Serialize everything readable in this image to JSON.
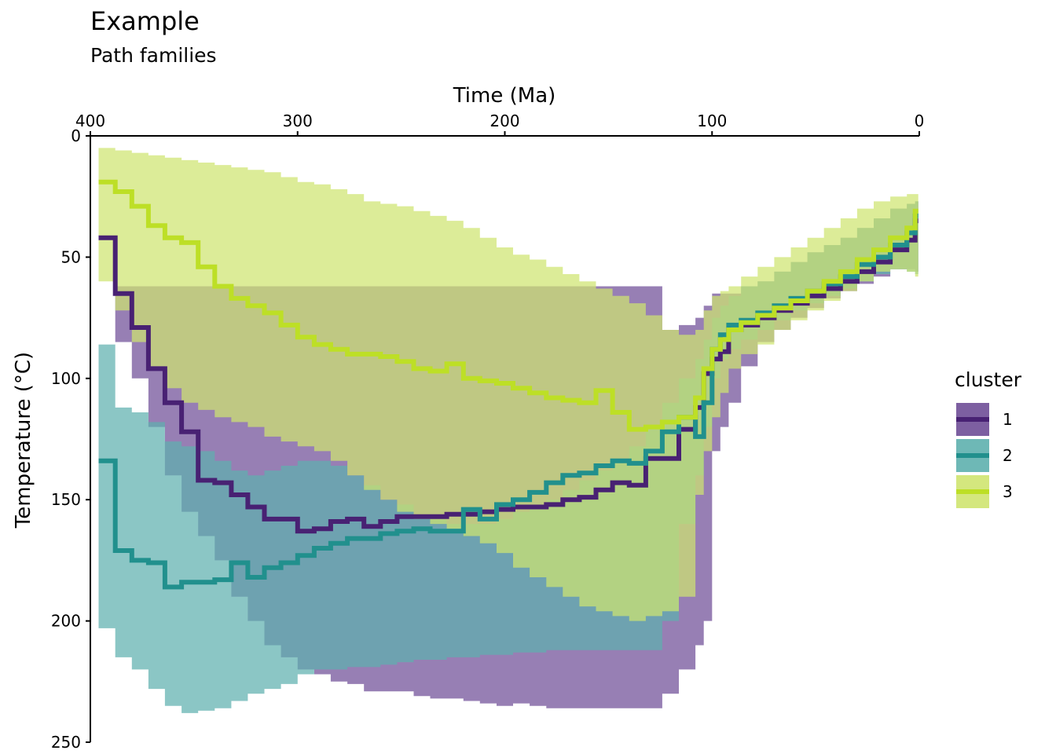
{
  "chart_data": {
    "type": "area",
    "title": "Example",
    "subtitle": "Path families",
    "xlabel": "Time (Ma)",
    "ylabel": "Temperature (°C)",
    "x_axis_position": "top",
    "x_reversed": true,
    "y_reversed": true,
    "xlim": [
      400,
      0
    ],
    "ylim": [
      0,
      250
    ],
    "x_ticks": [
      400,
      300,
      200,
      100,
      0
    ],
    "y_ticks": [
      0,
      50,
      100,
      150,
      200,
      250
    ],
    "grid": false,
    "legend": {
      "title": "cluster",
      "position": "right"
    },
    "series": [
      {
        "name": "1",
        "color": "#482173",
        "band_color": "#6f4e97",
        "time": [
          396,
          388,
          380,
          372,
          364,
          356,
          348,
          340,
          332,
          324,
          316,
          308,
          300,
          292,
          284,
          276,
          268,
          260,
          252,
          244,
          236,
          228,
          220,
          212,
          204,
          196,
          188,
          180,
          172,
          164,
          156,
          148,
          140,
          132,
          124,
          116,
          108,
          104,
          100,
          96,
          92,
          86,
          78,
          70,
          62,
          54,
          46,
          38,
          30,
          22,
          14,
          6,
          2
        ],
        "temperature": [
          42,
          65,
          79,
          96,
          110,
          122,
          142,
          143,
          148,
          153,
          158,
          158,
          163,
          162,
          159,
          158,
          161,
          159,
          157,
          157,
          157,
          156,
          156,
          155,
          154,
          153,
          153,
          152,
          150,
          149,
          146,
          143,
          144,
          133,
          133,
          121,
          112,
          98,
          92,
          89,
          80,
          78,
          75,
          72,
          69,
          66,
          63,
          60,
          56,
          52,
          47,
          43,
          35
        ],
        "lower": [
          62,
          62,
          62,
          62,
          62,
          62,
          62,
          62,
          62,
          62,
          62,
          62,
          62,
          62,
          62,
          62,
          62,
          62,
          62,
          62,
          62,
          62,
          62,
          62,
          62,
          62,
          62,
          62,
          62,
          62,
          62,
          62,
          62,
          62,
          80,
          78,
          75,
          70,
          65,
          65,
          65,
          62,
          60,
          56,
          52,
          48,
          45,
          42,
          38,
          34,
          30,
          28,
          27
        ],
        "upper": [
          62,
          85,
          100,
          120,
          140,
          155,
          165,
          175,
          190,
          200,
          210,
          215,
          220,
          222,
          225,
          226,
          229,
          229,
          229,
          231,
          232,
          232,
          233,
          234,
          235,
          234,
          235,
          236,
          236,
          236,
          236,
          236,
          236,
          236,
          230,
          220,
          210,
          200,
          130,
          120,
          110,
          95,
          85,
          80,
          75,
          71,
          67,
          64,
          61,
          58,
          55,
          55,
          56
        ]
      },
      {
        "name": "2",
        "color": "#21908d",
        "band_color": "#5eb0ae",
        "time": [
          396,
          388,
          380,
          372,
          364,
          356,
          348,
          340,
          332,
          324,
          316,
          308,
          300,
          292,
          284,
          276,
          268,
          260,
          252,
          244,
          236,
          228,
          220,
          212,
          204,
          196,
          188,
          180,
          172,
          164,
          156,
          148,
          140,
          132,
          124,
          116,
          108,
          104,
          100,
          96,
          92,
          86,
          78,
          70,
          62,
          54,
          46,
          38,
          30,
          22,
          14,
          6,
          2
        ],
        "temperature": [
          134,
          171,
          175,
          176,
          186,
          184,
          184,
          183,
          176,
          182,
          178,
          176,
          173,
          170,
          168,
          166,
          166,
          164,
          163,
          162,
          163,
          163,
          154,
          158,
          152,
          150,
          147,
          143,
          140,
          139,
          136,
          134,
          135,
          130,
          122,
          116,
          124,
          110,
          88,
          82,
          78,
          76,
          73,
          70,
          67,
          64,
          61,
          58,
          53,
          50,
          45,
          40,
          33
        ],
        "lower": [
          86,
          112,
          114,
          118,
          126,
          128,
          130,
          134,
          138,
          140,
          138,
          136,
          134,
          134,
          136,
          140,
          144,
          150,
          152,
          156,
          158,
          160,
          160,
          160,
          158,
          155,
          153,
          150,
          146,
          142,
          138,
          134,
          128,
          120,
          110,
          100,
          92,
          84,
          75,
          70,
          66,
          62,
          60,
          56,
          52,
          48,
          45,
          42,
          38,
          34,
          30,
          28,
          27
        ],
        "upper": [
          203,
          215,
          220,
          228,
          235,
          238,
          237,
          236,
          233,
          230,
          228,
          226,
          222,
          220,
          220,
          219,
          219,
          218,
          217,
          216,
          216,
          215,
          215,
          214,
          214,
          213,
          213,
          212,
          212,
          212,
          212,
          212,
          212,
          212,
          200,
          160,
          140,
          120,
          100,
          92,
          88,
          84,
          80,
          76,
          72,
          69,
          66,
          63,
          60,
          57,
          55,
          56,
          57
        ]
      },
      {
        "name": "3",
        "color": "#bddf26",
        "band_color": "#cfe470",
        "time": [
          396,
          388,
          380,
          372,
          364,
          356,
          348,
          340,
          332,
          324,
          316,
          308,
          300,
          292,
          284,
          276,
          268,
          260,
          252,
          244,
          236,
          228,
          220,
          212,
          204,
          196,
          188,
          180,
          172,
          164,
          156,
          148,
          140,
          132,
          124,
          116,
          108,
          104,
          100,
          96,
          92,
          86,
          78,
          70,
          62,
          54,
          46,
          38,
          30,
          22,
          14,
          6,
          2
        ],
        "temperature": [
          19,
          23,
          29,
          37,
          42,
          44,
          54,
          62,
          67,
          70,
          73,
          78,
          83,
          86,
          88,
          90,
          90,
          91,
          93,
          96,
          97,
          94,
          100,
          101,
          102,
          104,
          106,
          108,
          109,
          110,
          105,
          114,
          121,
          120,
          118,
          116,
          108,
          96,
          88,
          84,
          80,
          77,
          74,
          71,
          68,
          64,
          60,
          56,
          51,
          47,
          42,
          38,
          31
        ],
        "lower": [
          5,
          6,
          7,
          8,
          9,
          10,
          11,
          12,
          13,
          14,
          15,
          17,
          19,
          20,
          22,
          24,
          27,
          28,
          29,
          31,
          33,
          35,
          38,
          42,
          46,
          49,
          51,
          54,
          57,
          60,
          63,
          66,
          69,
          74,
          80,
          82,
          80,
          72,
          66,
          64,
          62,
          58,
          54,
          50,
          46,
          42,
          38,
          34,
          30,
          27,
          25,
          24,
          24
        ],
        "upper": [
          60,
          72,
          85,
          95,
          104,
          110,
          113,
          116,
          118,
          120,
          124,
          126,
          128,
          130,
          134,
          140,
          146,
          150,
          155,
          158,
          160,
          162,
          165,
          168,
          172,
          178,
          182,
          186,
          190,
          194,
          196,
          198,
          200,
          198,
          196,
          190,
          148,
          130,
          116,
          106,
          96,
          90,
          86,
          80,
          76,
          72,
          68,
          64,
          60,
          56,
          55,
          56,
          58
        ]
      }
    ]
  }
}
